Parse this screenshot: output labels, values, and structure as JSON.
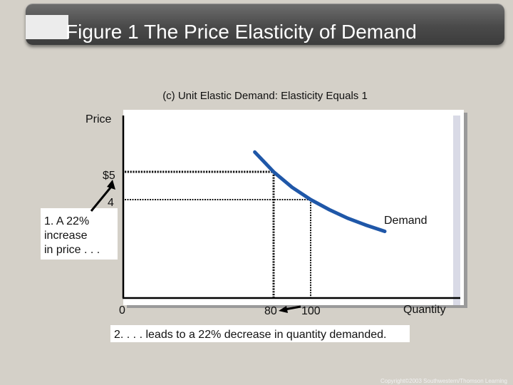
{
  "header": {
    "title": "Figure 1 The Price Elasticity of Demand"
  },
  "footer": {
    "copyright": "Copyright©2003 Southwestern/Thomson Learning"
  },
  "colors": {
    "background": "#d4d0c8",
    "title_bar": "#4a4a4a",
    "curve": "#1f57a8",
    "plot_bg": "#ffffff"
  },
  "chart_data": {
    "type": "line",
    "title": "(c) Unit Elastic Demand: Elasticity Equals 1",
    "xlabel": "Quantity",
    "ylabel": "Price",
    "grid": false,
    "x_ticks": [
      "0",
      "80",
      "100"
    ],
    "y_ticks": [
      "$5",
      "4"
    ],
    "series": [
      {
        "name": "Demand",
        "x": [
          70,
          80,
          90,
          100,
          110,
          120,
          130,
          140
        ],
        "y": [
          5.71,
          5.0,
          4.44,
          4.0,
          3.64,
          3.33,
          3.08,
          2.86
        ]
      }
    ],
    "reference_points": [
      {
        "x": 80,
        "y": 5
      },
      {
        "x": 100,
        "y": 4
      }
    ],
    "annotations": {
      "price_change": "1. A 22% increase in price . . .",
      "price_change_lines": [
        "1. A 22%",
        "increase",
        "in price . . ."
      ],
      "quantity_change": "2. . . . leads to a 22% decrease in quantity demanded."
    }
  }
}
